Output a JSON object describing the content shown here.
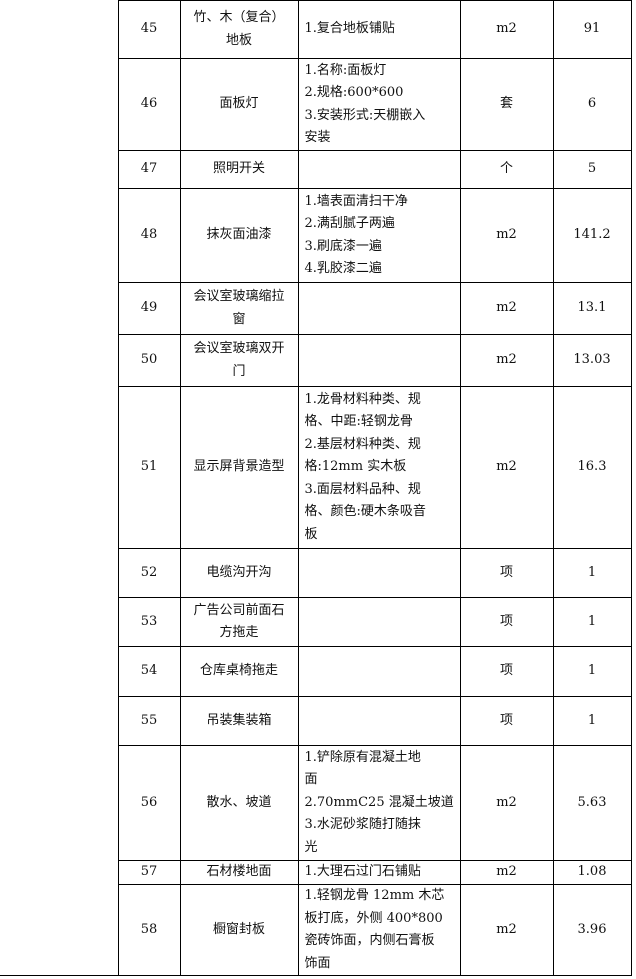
{
  "rows": [
    {
      "no": "45",
      "name": [
        "竹、木（复合）",
        "地板"
      ],
      "desc": [
        "1.复合地板铺贴"
      ],
      "unit": "m2",
      "qty": "91",
      "h": 58
    },
    {
      "no": "46",
      "name": [
        "面板灯"
      ],
      "desc": [
        "1.名称:面板灯",
        "2.规格:600*600",
        "3.安装形式:天棚嵌入",
        "安装"
      ],
      "unit": "套",
      "qty": "6",
      "h": 92
    },
    {
      "no": "47",
      "name": [
        "照明开关"
      ],
      "desc": [],
      "unit": "个",
      "qty": "5",
      "h": 38
    },
    {
      "no": "48",
      "name": [
        "抹灰面油漆"
      ],
      "desc": [
        "1.墙表面清扫干净",
        "2.满刮腻子两遍",
        "3.刷底漆一遍",
        "4.乳胶漆二遍"
      ],
      "unit": "m2",
      "qty": "141.2",
      "h": 94
    },
    {
      "no": "49",
      "name": [
        "会议室玻璃缩拉",
        "窗"
      ],
      "desc": [],
      "unit": "m2",
      "qty": "13.1",
      "h": 52
    },
    {
      "no": "50",
      "name": [
        "会议室玻璃双开",
        "门"
      ],
      "desc": [],
      "unit": "m2",
      "qty": "13.03",
      "h": 52
    },
    {
      "no": "51",
      "name": [
        "显示屏背景造型"
      ],
      "desc": [
        "1.龙骨材料种类、规",
        "格、中距:轻钢龙骨",
        "2.基层材料种类、规",
        "格:12mm 实木板",
        "3.面层材料品种、规",
        "格、颜色:硬木条吸音",
        "板"
      ],
      "unit": "m2",
      "qty": "16.3",
      "h": 162
    },
    {
      "no": "52",
      "name": [
        "电缆沟开沟"
      ],
      "desc": [],
      "unit": "项",
      "qty": "1",
      "h": 49
    },
    {
      "no": "53",
      "name": [
        "广告公司前面石",
        "方拖走"
      ],
      "desc": [],
      "unit": "项",
      "qty": "1",
      "h": 49
    },
    {
      "no": "54",
      "name": [
        "仓库桌椅拖走"
      ],
      "desc": [],
      "unit": "项",
      "qty": "1",
      "h": 50
    },
    {
      "no": "55",
      "name": [
        "吊装集装箱"
      ],
      "desc": [],
      "unit": "项",
      "qty": "1",
      "h": 49
    },
    {
      "no": "56",
      "name": [
        "散水、坡道"
      ],
      "desc": [
        "1.铲除原有混凝土地",
        "面",
        "2.70mmC25 混凝土坡道",
        "3.水泥砂浆随打随抹",
        "光"
      ],
      "unit": "m2",
      "qty": "5.63",
      "h": 115
    },
    {
      "no": "57",
      "name": [
        "石材楼地面"
      ],
      "desc": [
        "1.大理石过门石铺贴"
      ],
      "unit": "m2",
      "qty": "1.08",
      "h": 24
    },
    {
      "no": "58",
      "name": [
        "橱窗封板"
      ],
      "desc": [
        "1.轻钢龙骨 12mm 木芯",
        "板打底，外侧 400*800",
        "瓷砖饰面，内侧石膏板",
        "饰面"
      ],
      "unit": "m2",
      "qty": "3.96",
      "h": 91
    }
  ]
}
